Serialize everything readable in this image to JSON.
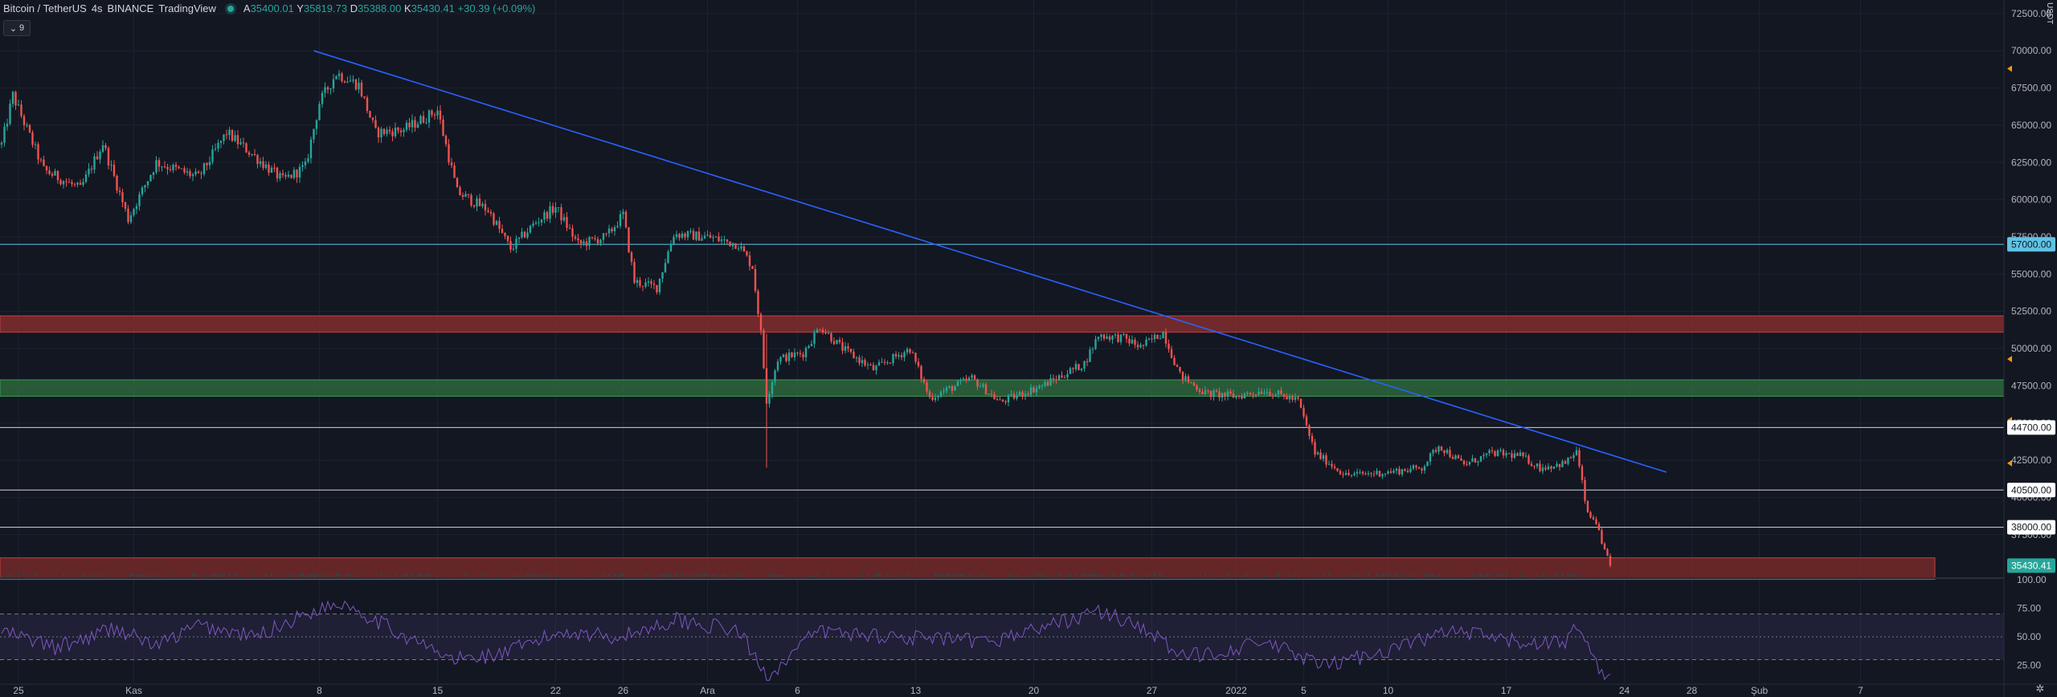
{
  "legend": {
    "symbol": "Bitcoin / TetherUS",
    "interval": "4s",
    "exchange": "BINANCE",
    "platform": "TradingView",
    "open_label": "A",
    "open": "35400.01",
    "high_label": "Y",
    "high": "35819.73",
    "low_label": "D",
    "low": "35388.00",
    "close_label": "K",
    "close": "35430.41",
    "change": "+30.39 (+0.09%)",
    "indicators_toggle": "9"
  },
  "currency": "USDT",
  "colors": {
    "up": "#26a69a",
    "down": "#ef5350",
    "bg": "#131722",
    "trendline": "#2962ff",
    "rsi": "#7e57c2"
  },
  "price_axis": {
    "ticks": [
      "72500.00",
      "70000.00",
      "67500.00",
      "65000.00",
      "62500.00",
      "60000.00",
      "57500.00",
      "55000.00",
      "52500.00",
      "50000.00",
      "47500.00",
      "45000.00",
      "42500.00",
      "40000.00",
      "37500.00"
    ],
    "range": [
      34800,
      73300
    ]
  },
  "levels": [
    {
      "price": 57000,
      "label": "57000.00",
      "type": "line",
      "color": "#5fc3e4"
    },
    {
      "price": 44700,
      "label": "44700.00",
      "type": "line",
      "color": "#d1d4dc"
    },
    {
      "price": 40500,
      "label": "40500.00",
      "type": "line",
      "color": "#d1d4dc"
    },
    {
      "price": 38000,
      "label": "38000.00",
      "type": "line",
      "color": "#d1d4dc"
    }
  ],
  "zones": [
    {
      "from": 51100,
      "to": 52200,
      "color": "#8b2e2e"
    },
    {
      "from": 46800,
      "to": 47900,
      "color": "#2e6b3e"
    },
    {
      "from": 34500,
      "to": 35950,
      "color": "#7a2a2a"
    }
  ],
  "last_price_label": "35430.41",
  "x_axis": {
    "labels": [
      {
        "t": "25",
        "i": 6
      },
      {
        "t": "Kas",
        "i": 47
      },
      {
        "t": "8",
        "i": 113
      },
      {
        "t": "15",
        "i": 155
      },
      {
        "t": "22",
        "i": 197
      },
      {
        "t": "26",
        "i": 221
      },
      {
        "t": "Ara",
        "i": 251
      },
      {
        "t": "6",
        "i": 283
      },
      {
        "t": "13",
        "i": 325
      },
      {
        "t": "20",
        "i": 367
      },
      {
        "t": "27",
        "i": 409
      },
      {
        "t": "2022",
        "i": 439
      },
      {
        "t": "5",
        "i": 463
      },
      {
        "t": "10",
        "i": 493
      },
      {
        "t": "17",
        "i": 535
      },
      {
        "t": "24",
        "i": 577
      },
      {
        "t": "28",
        "i": 601
      },
      {
        "t": "Şub",
        "i": 625
      },
      {
        "t": "7",
        "i": 661
      }
    ]
  },
  "rsi_axis": {
    "ticks": [
      "100.00",
      "75.00",
      "50.00",
      "25.00"
    ],
    "upper": 70,
    "lower": 30
  },
  "chart_data": {
    "type": "candlestick",
    "title": "Bitcoin / TetherUS",
    "ylabel": "USDT",
    "ylim": [
      34800,
      73300
    ],
    "trendline": [
      {
        "i": 111,
        "price": 70000
      },
      {
        "i": 592,
        "price": 41700
      }
    ],
    "key_points": [
      {
        "i": 0,
        "price": 63700
      },
      {
        "i": 4,
        "price": 67000
      },
      {
        "i": 15,
        "price": 62000
      },
      {
        "i": 28,
        "price": 60700
      },
      {
        "i": 36,
        "price": 63800
      },
      {
        "i": 45,
        "price": 58700
      },
      {
        "i": 55,
        "price": 62500
      },
      {
        "i": 70,
        "price": 61500
      },
      {
        "i": 80,
        "price": 64500
      },
      {
        "i": 100,
        "price": 61300
      },
      {
        "i": 108,
        "price": 62200
      },
      {
        "i": 113,
        "price": 66500
      },
      {
        "i": 119,
        "price": 68500
      },
      {
        "i": 127,
        "price": 67700
      },
      {
        "i": 133,
        "price": 64500
      },
      {
        "i": 143,
        "price": 64700
      },
      {
        "i": 155,
        "price": 66000
      },
      {
        "i": 162,
        "price": 60500
      },
      {
        "i": 173,
        "price": 59300
      },
      {
        "i": 181,
        "price": 56700
      },
      {
        "i": 190,
        "price": 58500
      },
      {
        "i": 197,
        "price": 59500
      },
      {
        "i": 205,
        "price": 57000
      },
      {
        "i": 215,
        "price": 57500
      },
      {
        "i": 221,
        "price": 59000
      },
      {
        "i": 225,
        "price": 54500
      },
      {
        "i": 233,
        "price": 54100
      },
      {
        "i": 239,
        "price": 57700
      },
      {
        "i": 251,
        "price": 57500
      },
      {
        "i": 262,
        "price": 57000
      },
      {
        "i": 267,
        "price": 55500
      },
      {
        "i": 270,
        "price": 51000
      },
      {
        "i": 272,
        "price": 46500
      },
      {
        "i": 276,
        "price": 49300
      },
      {
        "i": 285,
        "price": 49700
      },
      {
        "i": 291,
        "price": 51500
      },
      {
        "i": 299,
        "price": 50000
      },
      {
        "i": 310,
        "price": 48600
      },
      {
        "i": 323,
        "price": 50000
      },
      {
        "i": 330,
        "price": 46700
      },
      {
        "i": 345,
        "price": 48000
      },
      {
        "i": 355,
        "price": 46400
      },
      {
        "i": 371,
        "price": 47600
      },
      {
        "i": 385,
        "price": 49000
      },
      {
        "i": 390,
        "price": 50900
      },
      {
        "i": 399,
        "price": 50700
      },
      {
        "i": 405,
        "price": 50100
      },
      {
        "i": 413,
        "price": 51100
      },
      {
        "i": 419,
        "price": 48200
      },
      {
        "i": 428,
        "price": 47000
      },
      {
        "i": 439,
        "price": 46800
      },
      {
        "i": 449,
        "price": 47200
      },
      {
        "i": 461,
        "price": 46500
      },
      {
        "i": 467,
        "price": 43000
      },
      {
        "i": 478,
        "price": 41500
      },
      {
        "i": 493,
        "price": 41700
      },
      {
        "i": 505,
        "price": 42000
      },
      {
        "i": 511,
        "price": 43500
      },
      {
        "i": 520,
        "price": 42200
      },
      {
        "i": 530,
        "price": 43000
      },
      {
        "i": 540,
        "price": 42800
      },
      {
        "i": 547,
        "price": 42000
      },
      {
        "i": 556,
        "price": 42300
      },
      {
        "i": 560,
        "price": 43100
      },
      {
        "i": 564,
        "price": 38800
      },
      {
        "i": 567,
        "price": 38400
      },
      {
        "i": 569,
        "price": 36800
      },
      {
        "i": 572,
        "price": 35430
      }
    ],
    "rsi_key_points": [
      {
        "i": 0,
        "v": 55
      },
      {
        "i": 20,
        "v": 40
      },
      {
        "i": 40,
        "v": 58
      },
      {
        "i": 55,
        "v": 42
      },
      {
        "i": 70,
        "v": 60
      },
      {
        "i": 90,
        "v": 50
      },
      {
        "i": 113,
        "v": 75
      },
      {
        "i": 122,
        "v": 80
      },
      {
        "i": 140,
        "v": 55
      },
      {
        "i": 160,
        "v": 30
      },
      {
        "i": 178,
        "v": 35
      },
      {
        "i": 200,
        "v": 55
      },
      {
        "i": 220,
        "v": 50
      },
      {
        "i": 240,
        "v": 65
      },
      {
        "i": 262,
        "v": 55
      },
      {
        "i": 272,
        "v": 15
      },
      {
        "i": 290,
        "v": 55
      },
      {
        "i": 320,
        "v": 50
      },
      {
        "i": 350,
        "v": 45
      },
      {
        "i": 390,
        "v": 72
      },
      {
        "i": 405,
        "v": 60
      },
      {
        "i": 420,
        "v": 32
      },
      {
        "i": 450,
        "v": 45
      },
      {
        "i": 470,
        "v": 24
      },
      {
        "i": 495,
        "v": 40
      },
      {
        "i": 515,
        "v": 55
      },
      {
        "i": 540,
        "v": 45
      },
      {
        "i": 556,
        "v": 45
      },
      {
        "i": 561,
        "v": 62
      },
      {
        "i": 566,
        "v": 28
      },
      {
        "i": 572,
        "v": 15
      }
    ],
    "candle_count": 574
  }
}
